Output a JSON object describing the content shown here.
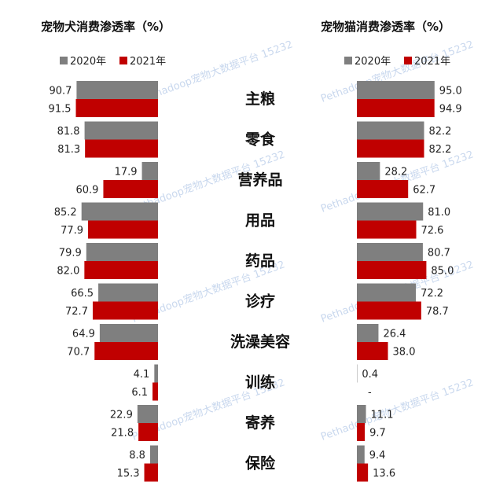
{
  "chart_data": [
    {
      "type": "bar",
      "title": "宠物犬消费渗透率（%）",
      "categories": [
        "主粮",
        "零食",
        "营养品",
        "用品",
        "药品",
        "诊疗",
        "洗澡美容",
        "训练",
        "寄养",
        "保险"
      ],
      "series": [
        {
          "name": "2020年",
          "values": [
            90.7,
            81.8,
            17.9,
            85.2,
            79.9,
            66.5,
            64.9,
            4.1,
            22.9,
            8.8
          ],
          "labels": [
            "90.7",
            "81.8",
            "17.9",
            "85.2",
            "79.9",
            "66.5",
            "64.9",
            "4.1",
            "22.9",
            "8.8"
          ]
        },
        {
          "name": "2021年",
          "values": [
            91.5,
            81.3,
            60.9,
            77.9,
            82.0,
            72.7,
            70.7,
            6.1,
            21.8,
            15.3
          ],
          "labels": [
            "91.5",
            "81.3",
            "60.9",
            "77.9",
            "82.0",
            "72.7",
            "70.7",
            "6.1",
            "21.8",
            "15.3"
          ]
        }
      ],
      "orientation": "horizontal-left"
    },
    {
      "type": "bar",
      "title": "宠物猫消费渗透率（%）",
      "categories": [
        "主粮",
        "零食",
        "营养品",
        "用品",
        "药品",
        "诊疗",
        "洗澡美容",
        "训练",
        "寄养",
        "保险"
      ],
      "series": [
        {
          "name": "2020年",
          "values": [
            95.0,
            82.2,
            28.2,
            81.0,
            80.7,
            72.2,
            26.4,
            0.4,
            11.1,
            9.4
          ],
          "labels": [
            "95.0",
            "82.2",
            "28.2",
            "81.0",
            "80.7",
            "72.2",
            "26.4",
            "0.4",
            "11.1",
            "9.4"
          ]
        },
        {
          "name": "2021年",
          "values": [
            94.9,
            82.2,
            62.7,
            72.6,
            85.0,
            78.7,
            38.0,
            null,
            9.7,
            13.6
          ],
          "labels": [
            "94.9",
            "82.2",
            "62.7",
            "72.6",
            "85.0",
            "78.7",
            "38.0",
            "-",
            "9.7",
            "13.6"
          ]
        }
      ],
      "orientation": "horizontal-right"
    }
  ],
  "watermark": "Pethadoop宠物大数据平台 15232",
  "colors": {
    "series_2020": "#7f7f7f",
    "series_2021": "#c00000"
  }
}
